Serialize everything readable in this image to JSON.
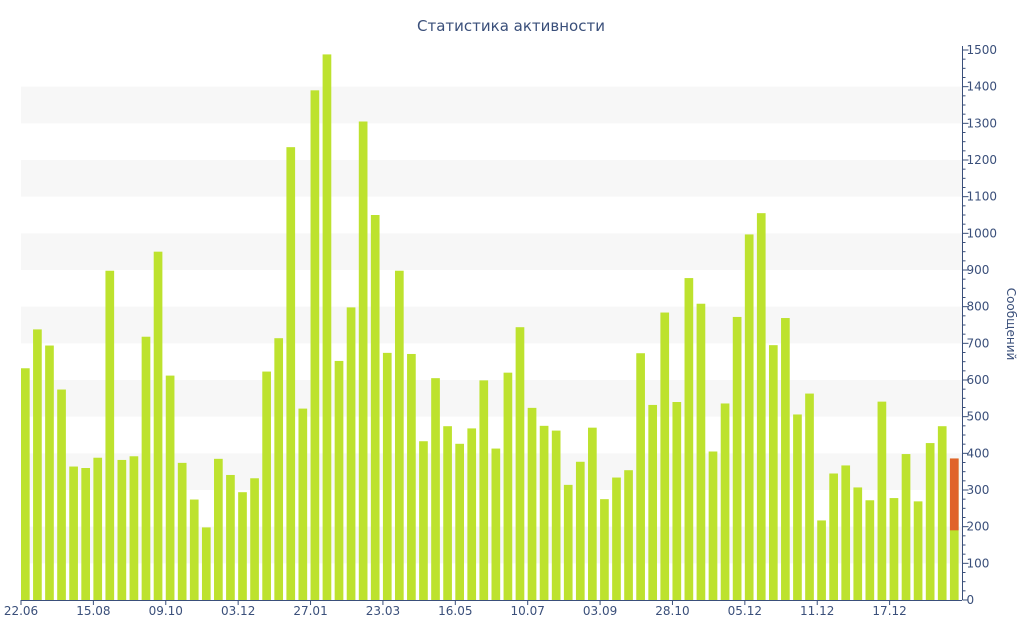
{
  "chart_data": {
    "type": "bar",
    "title": "Статистика активности",
    "ylabel": "Сообщений",
    "xlabel": "",
    "ylim": [
      0,
      1500
    ],
    "y_ticks": [
      0,
      100,
      200,
      300,
      400,
      500,
      600,
      700,
      800,
      900,
      1000,
      1100,
      1200,
      1300,
      1400,
      1500
    ],
    "y_axis_side": "right",
    "x_tick_labels": [
      {
        "index": 0,
        "label": "22.06"
      },
      {
        "index": 6,
        "label": "15.08"
      },
      {
        "index": 12,
        "label": "09.10"
      },
      {
        "index": 18,
        "label": "03.12"
      },
      {
        "index": 24,
        "label": "27.01"
      },
      {
        "index": 30,
        "label": "23.03"
      },
      {
        "index": 36,
        "label": "16.05"
      },
      {
        "index": 42,
        "label": "10.07"
      },
      {
        "index": 48,
        "label": "03.09"
      },
      {
        "index": 54,
        "label": "28.10"
      },
      {
        "index": 60,
        "label": "05.12"
      },
      {
        "index": 66,
        "label": "11.12"
      },
      {
        "index": 72,
        "label": "17.12"
      }
    ],
    "grid": "alternating-horizontal-bands",
    "colors": {
      "bar": "#bde22e",
      "highlight": "#e0632a",
      "axis": "#3a4f7a",
      "band": "#f7f7f7"
    },
    "values": [
      632,
      738,
      694,
      574,
      364,
      360,
      388,
      898,
      382,
      392,
      718,
      950,
      612,
      374,
      274,
      198,
      385,
      341,
      294,
      332,
      623,
      714,
      1235,
      522,
      1390,
      1488,
      652,
      798,
      1305,
      1050,
      674,
      898,
      671,
      433,
      605,
      474,
      426,
      468,
      599,
      413,
      620,
      744,
      524,
      475,
      462,
      314,
      377,
      470,
      275,
      334,
      354,
      673,
      532,
      784,
      540,
      878,
      808,
      405,
      536,
      772,
      997,
      1055,
      695,
      769,
      506,
      563,
      217,
      345,
      367,
      307,
      272,
      541,
      278,
      398,
      269,
      428,
      474,
      386
    ],
    "highlight": {
      "index": 77,
      "value": 386,
      "base": 190
    }
  }
}
